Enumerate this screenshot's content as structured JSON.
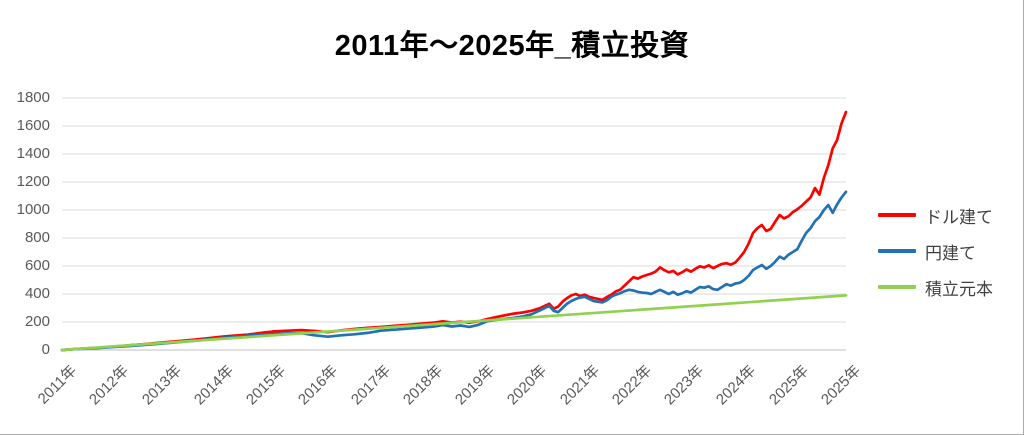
{
  "page": {
    "background": "#ffffff",
    "frame_border_color": "#ababab"
  },
  "chart_data": {
    "type": "line",
    "title": "2011年～2025年_積立投資",
    "xlabel": "",
    "ylabel": "",
    "x_unit": "months since 2011-01 (monthly series)",
    "x_range_months": [
      0,
      177
    ],
    "ylim": [
      0,
      1800
    ],
    "y_ticks": [
      0,
      200,
      400,
      600,
      800,
      1000,
      1200,
      1400,
      1600,
      1800
    ],
    "x_tick_labels": [
      "2011年",
      "2012年",
      "2013年",
      "2014年",
      "2015年",
      "2016年",
      "2017年",
      "2018年",
      "2019年",
      "2020年",
      "2021年",
      "2022年",
      "2023年",
      "2024年",
      "2025年",
      "2025年"
    ],
    "grid": true,
    "gridline_color": "#d9d9d9",
    "axis_line_color": "#bfbfbf",
    "tick_label_color": "#595959",
    "legend_position": "right",
    "legend_text_color": "#404040",
    "series": [
      {
        "name": "ドル建て",
        "key": "dollar",
        "color": "#ff0000",
        "points": [
          [
            0,
            0
          ],
          [
            2,
            4
          ],
          [
            4,
            9
          ],
          [
            6,
            13
          ],
          [
            8,
            16
          ],
          [
            10,
            20
          ],
          [
            12,
            25
          ],
          [
            14,
            30
          ],
          [
            16,
            36
          ],
          [
            18,
            40
          ],
          [
            20,
            46
          ],
          [
            22,
            52
          ],
          [
            24,
            57
          ],
          [
            27,
            66
          ],
          [
            30,
            74
          ],
          [
            33,
            84
          ],
          [
            36,
            95
          ],
          [
            39,
            103
          ],
          [
            42,
            110
          ],
          [
            45,
            122
          ],
          [
            48,
            133
          ],
          [
            51,
            138
          ],
          [
            54,
            142
          ],
          [
            57,
            136
          ],
          [
            60,
            128
          ],
          [
            63,
            140
          ],
          [
            66,
            150
          ],
          [
            69,
            158
          ],
          [
            72,
            164
          ],
          [
            75,
            172
          ],
          [
            78,
            180
          ],
          [
            81,
            188
          ],
          [
            84,
            196
          ],
          [
            86,
            205
          ],
          [
            88,
            196
          ],
          [
            90,
            202
          ],
          [
            92,
            196
          ],
          [
            94,
            205
          ],
          [
            96,
            221
          ],
          [
            98,
            235
          ],
          [
            100,
            248
          ],
          [
            102,
            260
          ],
          [
            104,
            268
          ],
          [
            106,
            280
          ],
          [
            108,
            300
          ],
          [
            109,
            315
          ],
          [
            110,
            330
          ],
          [
            111,
            295
          ],
          [
            112,
            310
          ],
          [
            113,
            345
          ],
          [
            114,
            370
          ],
          [
            115,
            390
          ],
          [
            116,
            400
          ],
          [
            117,
            385
          ],
          [
            118,
            395
          ],
          [
            119,
            380
          ],
          [
            120,
            372
          ],
          [
            121,
            365
          ],
          [
            122,
            358
          ],
          [
            123,
            378
          ],
          [
            124,
            395
          ],
          [
            125,
            418
          ],
          [
            126,
            430
          ],
          [
            127,
            460
          ],
          [
            128,
            490
          ],
          [
            129,
            520
          ],
          [
            130,
            510
          ],
          [
            131,
            525
          ],
          [
            132,
            536
          ],
          [
            133,
            545
          ],
          [
            134,
            560
          ],
          [
            135,
            590
          ],
          [
            136,
            570
          ],
          [
            137,
            555
          ],
          [
            138,
            565
          ],
          [
            139,
            540
          ],
          [
            140,
            555
          ],
          [
            141,
            575
          ],
          [
            142,
            560
          ],
          [
            143,
            580
          ],
          [
            144,
            598
          ],
          [
            145,
            590
          ],
          [
            146,
            605
          ],
          [
            147,
            585
          ],
          [
            148,
            600
          ],
          [
            149,
            615
          ],
          [
            150,
            620
          ],
          [
            151,
            610
          ],
          [
            152,
            625
          ],
          [
            153,
            660
          ],
          [
            154,
            700
          ],
          [
            155,
            760
          ],
          [
            156,
            836
          ],
          [
            157,
            870
          ],
          [
            158,
            893
          ],
          [
            159,
            850
          ],
          [
            160,
            865
          ],
          [
            161,
            915
          ],
          [
            162,
            964
          ],
          [
            163,
            940
          ],
          [
            164,
            955
          ],
          [
            165,
            985
          ],
          [
            166,
            1005
          ],
          [
            167,
            1030
          ],
          [
            168,
            1060
          ],
          [
            169,
            1090
          ],
          [
            170,
            1157
          ],
          [
            171,
            1110
          ],
          [
            172,
            1230
          ],
          [
            173,
            1320
          ],
          [
            174,
            1440
          ],
          [
            175,
            1500
          ],
          [
            176,
            1620
          ],
          [
            177,
            1700
          ]
        ]
      },
      {
        "name": "円建て",
        "key": "yen",
        "color": "#2271b5",
        "points": [
          [
            0,
            0
          ],
          [
            3,
            6
          ],
          [
            6,
            11
          ],
          [
            9,
            16
          ],
          [
            12,
            22
          ],
          [
            15,
            28
          ],
          [
            18,
            35
          ],
          [
            21,
            42
          ],
          [
            24,
            50
          ],
          [
            27,
            58
          ],
          [
            30,
            66
          ],
          [
            33,
            76
          ],
          [
            36,
            86
          ],
          [
            39,
            94
          ],
          [
            42,
            102
          ],
          [
            45,
            110
          ],
          [
            48,
            114
          ],
          [
            51,
            118
          ],
          [
            54,
            120
          ],
          [
            57,
            105
          ],
          [
            60,
            95
          ],
          [
            63,
            105
          ],
          [
            66,
            112
          ],
          [
            69,
            122
          ],
          [
            72,
            138
          ],
          [
            75,
            145
          ],
          [
            78,
            152
          ],
          [
            81,
            160
          ],
          [
            84,
            168
          ],
          [
            86,
            178
          ],
          [
            88,
            168
          ],
          [
            90,
            175
          ],
          [
            92,
            165
          ],
          [
            94,
            180
          ],
          [
            96,
            205
          ],
          [
            98,
            215
          ],
          [
            100,
            222
          ],
          [
            102,
            230
          ],
          [
            104,
            240
          ],
          [
            106,
            255
          ],
          [
            108,
            285
          ],
          [
            109,
            300
          ],
          [
            110,
            315
          ],
          [
            111,
            280
          ],
          [
            112,
            270
          ],
          [
            113,
            300
          ],
          [
            114,
            330
          ],
          [
            115,
            350
          ],
          [
            116,
            365
          ],
          [
            117,
            375
          ],
          [
            118,
            380
          ],
          [
            119,
            365
          ],
          [
            120,
            350
          ],
          [
            122,
            340
          ],
          [
            123,
            355
          ],
          [
            124,
            380
          ],
          [
            125,
            395
          ],
          [
            126,
            405
          ],
          [
            127,
            420
          ],
          [
            128,
            430
          ],
          [
            129,
            425
          ],
          [
            130,
            415
          ],
          [
            131,
            410
          ],
          [
            132,
            407
          ],
          [
            133,
            400
          ],
          [
            134,
            415
          ],
          [
            135,
            430
          ],
          [
            136,
            415
          ],
          [
            137,
            400
          ],
          [
            138,
            415
          ],
          [
            139,
            395
          ],
          [
            140,
            405
          ],
          [
            141,
            420
          ],
          [
            142,
            410
          ],
          [
            143,
            430
          ],
          [
            144,
            450
          ],
          [
            145,
            445
          ],
          [
            146,
            455
          ],
          [
            147,
            435
          ],
          [
            148,
            430
          ],
          [
            149,
            450
          ],
          [
            150,
            470
          ],
          [
            151,
            460
          ],
          [
            152,
            475
          ],
          [
            153,
            480
          ],
          [
            154,
            500
          ],
          [
            155,
            530
          ],
          [
            156,
            571
          ],
          [
            157,
            590
          ],
          [
            158,
            607
          ],
          [
            159,
            580
          ],
          [
            160,
            600
          ],
          [
            161,
            630
          ],
          [
            162,
            667
          ],
          [
            163,
            650
          ],
          [
            164,
            680
          ],
          [
            165,
            700
          ],
          [
            166,
            720
          ],
          [
            167,
            780
          ],
          [
            168,
            836
          ],
          [
            169,
            871
          ],
          [
            170,
            920
          ],
          [
            171,
            950
          ],
          [
            172,
            1000
          ],
          [
            173,
            1036
          ],
          [
            174,
            980
          ],
          [
            175,
            1040
          ],
          [
            176,
            1090
          ],
          [
            177,
            1130
          ]
        ]
      },
      {
        "name": "積立元本",
        "key": "principal",
        "color": "#92d050",
        "points": [
          [
            0,
            0
          ],
          [
            36,
            79
          ],
          [
            72,
            158
          ],
          [
            108,
            238
          ],
          [
            144,
            317
          ],
          [
            177,
            390
          ]
        ]
      }
    ]
  }
}
